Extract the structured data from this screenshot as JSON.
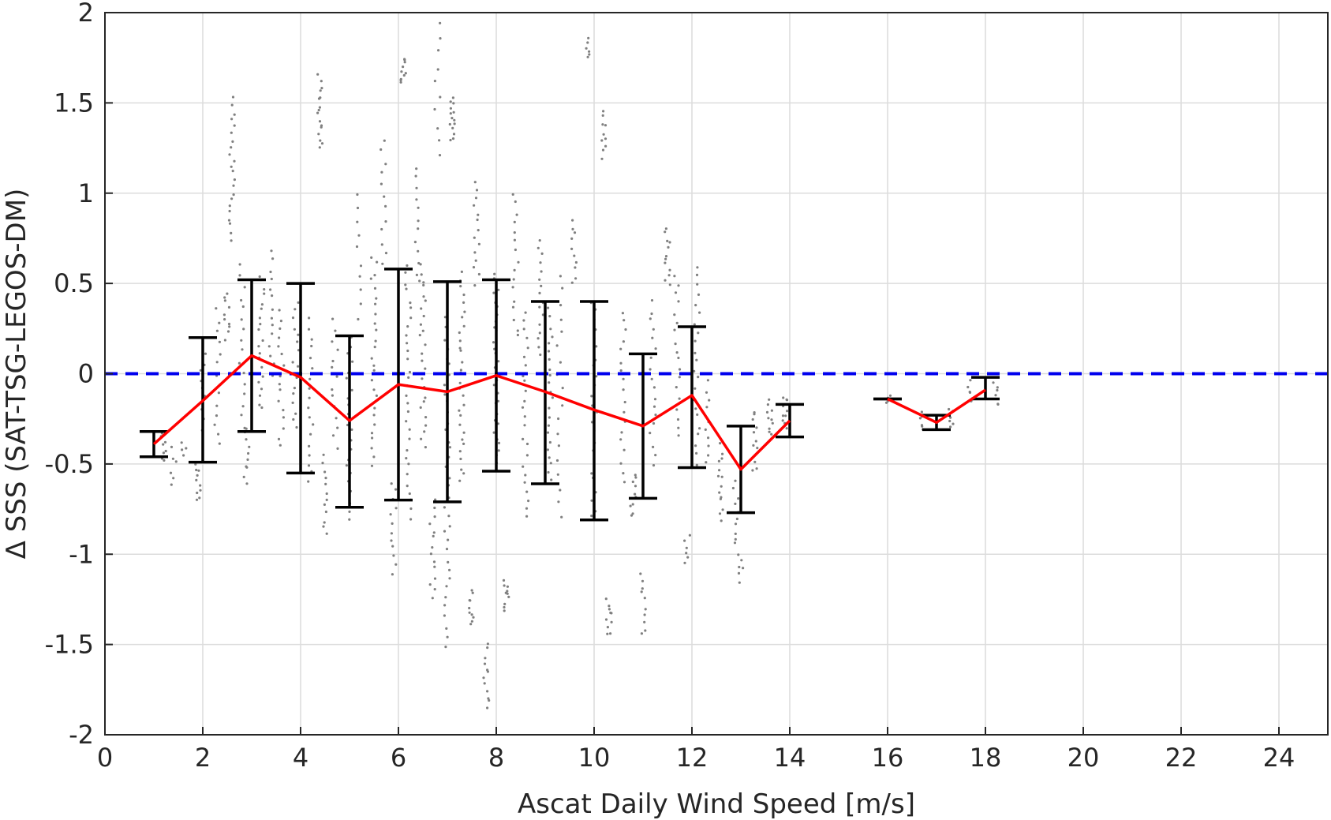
{
  "chart_data": {
    "type": "scatter",
    "title": "",
    "xlabel": "Ascat Daily Wind Speed [m/s]",
    "ylabel": "Δ SSS (SAT-TSG-LEGOS-DM)",
    "xlim": [
      0,
      25
    ],
    "ylim": [
      -2,
      2
    ],
    "xticks": [
      0,
      2,
      4,
      6,
      8,
      10,
      12,
      14,
      16,
      18,
      20,
      22,
      24
    ],
    "yticks": [
      -2,
      -1.5,
      -1,
      -0.5,
      0,
      0.5,
      1,
      1.5,
      2
    ],
    "xtick_labels": [
      "0",
      "2",
      "4",
      "6",
      "8",
      "10",
      "12",
      "14",
      "16",
      "18",
      "20",
      "22",
      "24"
    ],
    "ytick_labels": [
      "-2",
      "-1.5",
      "-1",
      "-0.5",
      "0",
      "0.5",
      "1",
      "1.5",
      "2"
    ],
    "grid": true,
    "reference_line": {
      "y": 0,
      "style": "dashed",
      "color": "#0000ee"
    },
    "colors": {
      "scatter": "#808080",
      "mean_line": "#ff0000",
      "error_bars": "#000000"
    },
    "scatter_clusters": [
      {
        "x": 1.2,
        "y_range": [
          -0.48,
          -0.33
        ],
        "n": 8
      },
      {
        "x": 1.4,
        "y_range": [
          -0.62,
          -0.42
        ],
        "n": 6
      },
      {
        "x": 1.6,
        "y_range": [
          -0.45,
          -0.38
        ],
        "n": 4
      },
      {
        "x": 1.9,
        "y_range": [
          -0.7,
          -0.5
        ],
        "n": 10
      },
      {
        "x": 2.0,
        "y_range": [
          -0.3,
          0.1
        ],
        "n": 10
      },
      {
        "x": 2.3,
        "y_range": [
          -0.4,
          0.35
        ],
        "n": 14
      },
      {
        "x": 2.5,
        "y_range": [
          0.2,
          0.45
        ],
        "n": 10
      },
      {
        "x": 2.6,
        "y_range": [
          0.75,
          1.52
        ],
        "n": 22
      },
      {
        "x": 2.8,
        "y_range": [
          -0.3,
          0.6
        ],
        "n": 16
      },
      {
        "x": 2.9,
        "y_range": [
          -0.6,
          -0.3
        ],
        "n": 10
      },
      {
        "x": 3.2,
        "y_range": [
          -0.2,
          0.55
        ],
        "n": 20
      },
      {
        "x": 3.4,
        "y_range": [
          0.0,
          0.68
        ],
        "n": 14
      },
      {
        "x": 3.6,
        "y_range": [
          -0.4,
          0.35
        ],
        "n": 16
      },
      {
        "x": 3.9,
        "y_range": [
          -0.3,
          0.4
        ],
        "n": 16
      },
      {
        "x": 4.2,
        "y_range": [
          -0.6,
          0.3
        ],
        "n": 18
      },
      {
        "x": 4.4,
        "y_range": [
          1.25,
          1.65
        ],
        "n": 16
      },
      {
        "x": 4.5,
        "y_range": [
          -0.9,
          -0.45
        ],
        "n": 12
      },
      {
        "x": 4.7,
        "y_range": [
          -0.4,
          0.3
        ],
        "n": 14
      },
      {
        "x": 5.0,
        "y_range": [
          -0.8,
          0.2
        ],
        "n": 22
      },
      {
        "x": 5.2,
        "y_range": [
          0.3,
          1.0
        ],
        "n": 10
      },
      {
        "x": 5.5,
        "y_range": [
          -0.5,
          0.65
        ],
        "n": 26
      },
      {
        "x": 5.7,
        "y_range": [
          0.6,
          1.3
        ],
        "n": 12
      },
      {
        "x": 5.9,
        "y_range": [
          -1.1,
          -0.6
        ],
        "n": 12
      },
      {
        "x": 6.1,
        "y_range": [
          1.6,
          1.75
        ],
        "n": 10
      },
      {
        "x": 6.2,
        "y_range": [
          -0.8,
          0.6
        ],
        "n": 30
      },
      {
        "x": 6.4,
        "y_range": [
          0.5,
          1.15
        ],
        "n": 12
      },
      {
        "x": 6.5,
        "y_range": [
          -0.4,
          0.6
        ],
        "n": 26
      },
      {
        "x": 6.7,
        "y_range": [
          -1.25,
          -0.7
        ],
        "n": 14
      },
      {
        "x": 6.8,
        "y_range": [
          1.2,
          1.95
        ],
        "n": 10
      },
      {
        "x": 7.0,
        "y_range": [
          -1.5,
          0.3
        ],
        "n": 36
      },
      {
        "x": 7.1,
        "y_range": [
          1.3,
          1.52
        ],
        "n": 14
      },
      {
        "x": 7.3,
        "y_range": [
          -0.6,
          0.55
        ],
        "n": 30
      },
      {
        "x": 7.5,
        "y_range": [
          -1.4,
          -1.2
        ],
        "n": 10
      },
      {
        "x": 7.6,
        "y_range": [
          0.5,
          1.05
        ],
        "n": 14
      },
      {
        "x": 7.8,
        "y_range": [
          -1.85,
          -1.5
        ],
        "n": 12
      },
      {
        "x": 8.0,
        "y_range": [
          -0.5,
          0.55
        ],
        "n": 30
      },
      {
        "x": 8.2,
        "y_range": [
          -1.3,
          -1.15
        ],
        "n": 10
      },
      {
        "x": 8.4,
        "y_range": [
          0.2,
          1.0
        ],
        "n": 16
      },
      {
        "x": 8.6,
        "y_range": [
          -0.8,
          0.35
        ],
        "n": 24
      },
      {
        "x": 8.9,
        "y_range": [
          0.1,
          0.75
        ],
        "n": 16
      },
      {
        "x": 9.1,
        "y_range": [
          -0.6,
          0.35
        ],
        "n": 22
      },
      {
        "x": 9.3,
        "y_range": [
          -0.8,
          0.55
        ],
        "n": 18
      },
      {
        "x": 9.6,
        "y_range": [
          0.5,
          0.85
        ],
        "n": 10
      },
      {
        "x": 9.9,
        "y_range": [
          1.75,
          1.85
        ],
        "n": 6
      },
      {
        "x": 10.0,
        "y_range": [
          -0.8,
          0.4
        ],
        "n": 24
      },
      {
        "x": 10.2,
        "y_range": [
          1.2,
          1.45
        ],
        "n": 10
      },
      {
        "x": 10.3,
        "y_range": [
          -1.45,
          -1.25
        ],
        "n": 10
      },
      {
        "x": 10.6,
        "y_range": [
          -0.6,
          0.35
        ],
        "n": 18
      },
      {
        "x": 10.8,
        "y_range": [
          -0.8,
          -0.55
        ],
        "n": 10
      },
      {
        "x": 11.0,
        "y_range": [
          -1.45,
          -1.1
        ],
        "n": 10
      },
      {
        "x": 11.2,
        "y_range": [
          -0.5,
          0.4
        ],
        "n": 18
      },
      {
        "x": 11.5,
        "y_range": [
          0.5,
          0.8
        ],
        "n": 12
      },
      {
        "x": 11.7,
        "y_range": [
          -0.35,
          0.55
        ],
        "n": 18
      },
      {
        "x": 11.9,
        "y_range": [
          -1.05,
          -0.9
        ],
        "n": 6
      },
      {
        "x": 12.1,
        "y_range": [
          -0.5,
          0.6
        ],
        "n": 22
      },
      {
        "x": 12.3,
        "y_range": [
          -0.5,
          0.0
        ],
        "n": 12
      },
      {
        "x": 12.6,
        "y_range": [
          -0.8,
          -0.4
        ],
        "n": 14
      },
      {
        "x": 12.9,
        "y_range": [
          -0.95,
          -0.6
        ],
        "n": 10
      },
      {
        "x": 13.0,
        "y_range": [
          -1.15,
          -1.0
        ],
        "n": 6
      },
      {
        "x": 13.3,
        "y_range": [
          -0.55,
          -0.2
        ],
        "n": 12
      },
      {
        "x": 13.6,
        "y_range": [
          -0.35,
          -0.15
        ],
        "n": 10
      },
      {
        "x": 13.9,
        "y_range": [
          -0.3,
          -0.12
        ],
        "n": 10
      },
      {
        "x": 16.0,
        "y_range": [
          -0.16,
          -0.13
        ],
        "n": 4
      },
      {
        "x": 16.7,
        "y_range": [
          -0.32,
          -0.22
        ],
        "n": 6
      },
      {
        "x": 17.3,
        "y_range": [
          -0.3,
          -0.2
        ],
        "n": 6
      },
      {
        "x": 17.7,
        "y_range": [
          -0.15,
          -0.05
        ],
        "n": 6
      },
      {
        "x": 18.2,
        "y_range": [
          -0.18,
          -0.05
        ],
        "n": 6
      }
    ],
    "series": [
      {
        "x": [
          1,
          2,
          3,
          4,
          5,
          6,
          7,
          8,
          9,
          10,
          11,
          12,
          13,
          14
        ],
        "mean": [
          -0.39,
          -0.15,
          0.1,
          -0.02,
          -0.26,
          -0.06,
          -0.1,
          -0.01,
          -0.1,
          -0.2,
          -0.29,
          -0.12,
          -0.53,
          -0.26
        ],
        "upper": [
          -0.32,
          0.2,
          0.52,
          0.5,
          0.21,
          0.58,
          0.51,
          0.52,
          0.4,
          0.4,
          0.11,
          0.26,
          -0.29,
          -0.17
        ],
        "lower": [
          -0.46,
          -0.49,
          -0.32,
          -0.55,
          -0.74,
          -0.7,
          -0.71,
          -0.54,
          -0.61,
          -0.81,
          -0.69,
          -0.52,
          -0.77,
          -0.35
        ]
      },
      {
        "x": [
          16,
          17,
          18
        ],
        "mean": [
          -0.14,
          -0.27,
          -0.09
        ],
        "upper": [
          -0.14,
          -0.23,
          -0.02
        ],
        "lower": [
          -0.14,
          -0.31,
          -0.14
        ]
      }
    ]
  }
}
